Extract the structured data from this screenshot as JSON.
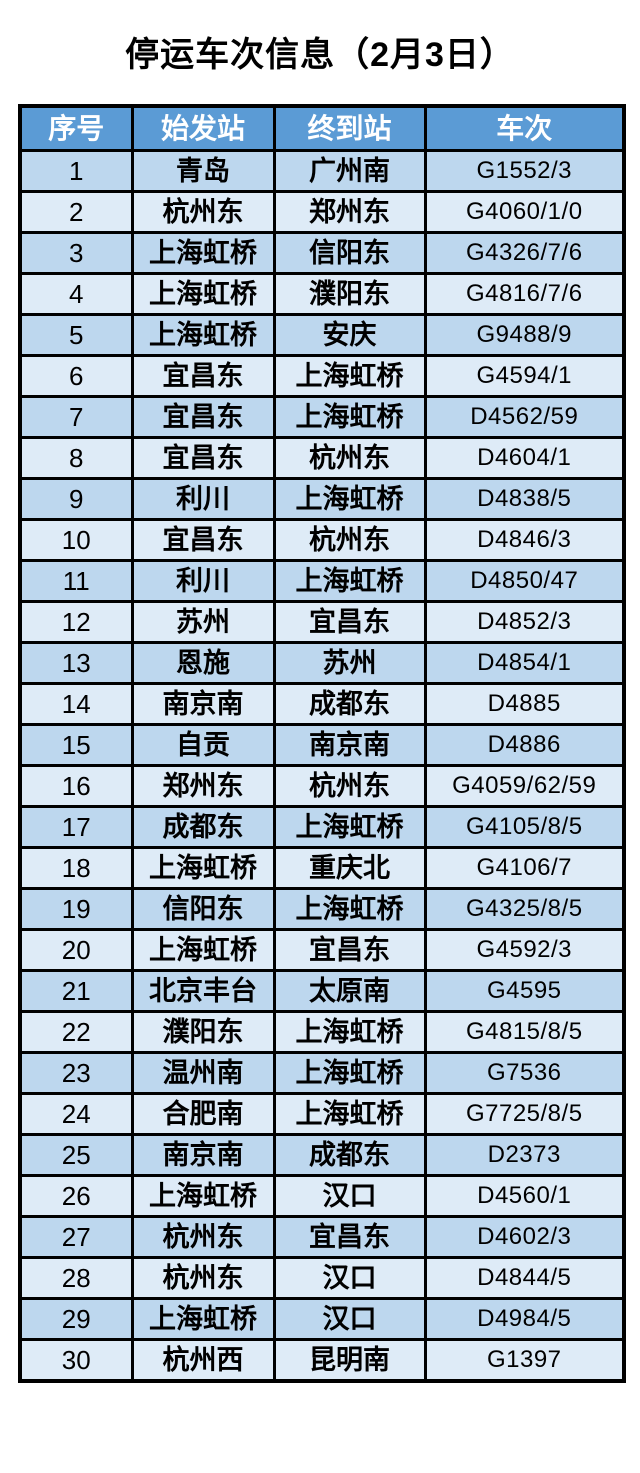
{
  "title": "停运车次信息（2月3日）",
  "table": {
    "headers": [
      "序号",
      "始发站",
      "终到站",
      "车次"
    ],
    "rows": [
      [
        "1",
        "青岛",
        "广州南",
        "G1552/3"
      ],
      [
        "2",
        "杭州东",
        "郑州东",
        "G4060/1/0"
      ],
      [
        "3",
        "上海虹桥",
        "信阳东",
        "G4326/7/6"
      ],
      [
        "4",
        "上海虹桥",
        "濮阳东",
        "G4816/7/6"
      ],
      [
        "5",
        "上海虹桥",
        "安庆",
        "G9488/9"
      ],
      [
        "6",
        "宜昌东",
        "上海虹桥",
        "G4594/1"
      ],
      [
        "7",
        "宜昌东",
        "上海虹桥",
        "D4562/59"
      ],
      [
        "8",
        "宜昌东",
        "杭州东",
        "D4604/1"
      ],
      [
        "9",
        "利川",
        "上海虹桥",
        "D4838/5"
      ],
      [
        "10",
        "宜昌东",
        "杭州东",
        "D4846/3"
      ],
      [
        "11",
        "利川",
        "上海虹桥",
        "D4850/47"
      ],
      [
        "12",
        "苏州",
        "宜昌东",
        "D4852/3"
      ],
      [
        "13",
        "恩施",
        "苏州",
        "D4854/1"
      ],
      [
        "14",
        "南京南",
        "成都东",
        "D4885"
      ],
      [
        "15",
        "自贡",
        "南京南",
        "D4886"
      ],
      [
        "16",
        "郑州东",
        "杭州东",
        "G4059/62/59"
      ],
      [
        "17",
        "成都东",
        "上海虹桥",
        "G4105/8/5"
      ],
      [
        "18",
        "上海虹桥",
        "重庆北",
        "G4106/7"
      ],
      [
        "19",
        "信阳东",
        "上海虹桥",
        "G4325/8/5"
      ],
      [
        "20",
        "上海虹桥",
        "宜昌东",
        "G4592/3"
      ],
      [
        "21",
        "北京丰台",
        "太原南",
        "G4595"
      ],
      [
        "22",
        "濮阳东",
        "上海虹桥",
        "G4815/8/5"
      ],
      [
        "23",
        "温州南",
        "上海虹桥",
        "G7536"
      ],
      [
        "24",
        "合肥南",
        "上海虹桥",
        "G7725/8/5"
      ],
      [
        "25",
        "南京南",
        "成都东",
        "D2373"
      ],
      [
        "26",
        "上海虹桥",
        "汉口",
        "D4560/1"
      ],
      [
        "27",
        "杭州东",
        "宜昌东",
        "D4602/3"
      ],
      [
        "28",
        "杭州东",
        "汉口",
        "D4844/5"
      ],
      [
        "29",
        "上海虹桥",
        "汉口",
        "D4984/5"
      ],
      [
        "30",
        "杭州西",
        "昆明南",
        "G1397"
      ]
    ]
  },
  "colors": {
    "header_bg": "#5B9BD5",
    "header_text": "#FFFFFF",
    "row_odd_bg": "#BDD7EE",
    "row_even_bg": "#DEEBF7",
    "border": "#000000",
    "text": "#000000",
    "page_bg": "#FFFFFF"
  }
}
